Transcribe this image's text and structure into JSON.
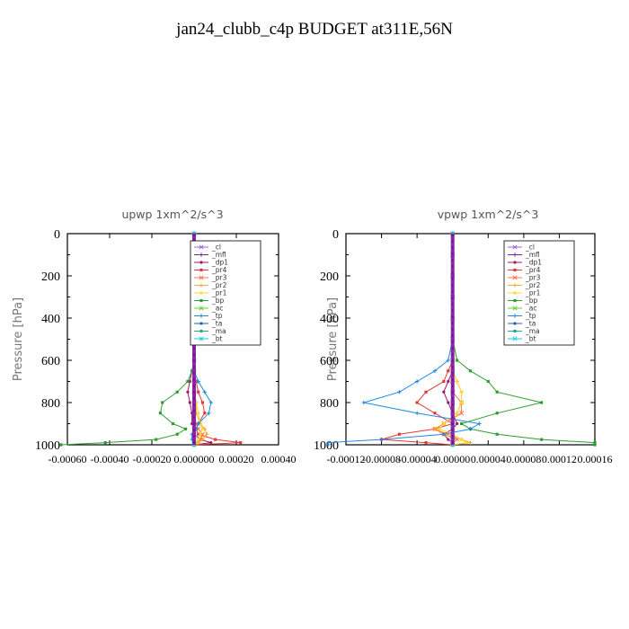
{
  "title": "jan24_clubb_c4p  BUDGET at311E,56N",
  "chart_data": [
    {
      "type": "line",
      "title": "upwp   1xm^2/s^3",
      "ylabel": "Pressure [hPa]",
      "ylim": [
        1000,
        0
      ],
      "xlim": [
        -0.0006,
        0.0004
      ],
      "xticks": [
        "-0.00060",
        "-0.00040",
        "-0.00020",
        "0.000000",
        "0.00020",
        "0.00040"
      ],
      "xtick_values": [
        -0.0006,
        -0.0004,
        -0.0002,
        0.0,
        0.0002,
        0.0004
      ],
      "yticks": [
        0,
        200,
        400,
        600,
        800,
        1000
      ],
      "y": [
        0,
        100,
        200,
        300,
        400,
        500,
        600,
        650,
        700,
        750,
        800,
        850,
        900,
        925,
        950,
        975,
        990,
        1000
      ],
      "legend": [
        "_cl",
        "_mfl",
        "_dp1",
        "_pr4",
        "_pr3",
        "_pr2",
        "_pr1",
        "_bp",
        "_ac",
        "_tp",
        "_ta",
        "_ma",
        "_bt"
      ],
      "series": [
        {
          "name": "_cl",
          "color": "#9966cc",
          "values": [
            0,
            0,
            0,
            0,
            0,
            0,
            0,
            0,
            0,
            0,
            0,
            0,
            0,
            0,
            0,
            0,
            0,
            0
          ]
        },
        {
          "name": "_mfl",
          "color": "#7b1fa2",
          "values": [
            0,
            0,
            0,
            0,
            0,
            0,
            0,
            0,
            0,
            0,
            0,
            0,
            0,
            0,
            0,
            0,
            0,
            0
          ]
        },
        {
          "name": "_dp1",
          "color": "#a0186a",
          "values": [
            0,
            0,
            0,
            0,
            0,
            0,
            0,
            -1e-05,
            -2e-05,
            -3e-05,
            -2e-05,
            -1e-05,
            -1e-05,
            0,
            0,
            3e-05,
            8e-05,
            0.0
          ]
        },
        {
          "name": "_pr4",
          "color": "#e53935",
          "values": [
            0,
            0,
            0,
            0,
            0,
            0,
            0,
            0,
            1e-05,
            2e-05,
            4e-05,
            5e-05,
            2e-05,
            1e-05,
            2e-05,
            0.0001,
            0.00022,
            0.0
          ]
        },
        {
          "name": "_pr3",
          "color": "#ff7043",
          "values": [
            0,
            0,
            0,
            0,
            0,
            0,
            0,
            0,
            0,
            0,
            0,
            0,
            1e-05,
            2e-05,
            4e-05,
            3e-05,
            1e-05,
            0
          ]
        },
        {
          "name": "_pr2",
          "color": "#ffa726",
          "values": [
            0,
            0,
            0,
            0,
            0,
            0,
            0,
            0,
            0,
            0,
            1e-05,
            1e-05,
            3e-05,
            5e-05,
            6e-05,
            4e-05,
            2e-05,
            0
          ]
        },
        {
          "name": "_pr1",
          "color": "#fdd835",
          "values": [
            0,
            0,
            0,
            0,
            0,
            0,
            0,
            0,
            0,
            0,
            1e-05,
            2e-05,
            3e-05,
            4e-05,
            3e-05,
            2e-05,
            1e-05,
            0
          ]
        },
        {
          "name": "_bp",
          "color": "#2e9e2e",
          "values": [
            0,
            0,
            0,
            0,
            0,
            0,
            0,
            -1e-05,
            -3e-05,
            -8e-05,
            -0.00015,
            -0.00016,
            -0.0001,
            -4e-05,
            -8e-05,
            -0.00018,
            -0.00042,
            -0.00063
          ]
        },
        {
          "name": "_ac",
          "color": "#66cc33",
          "values": [
            0,
            0,
            0,
            0,
            0,
            0,
            0,
            0,
            0,
            0,
            0,
            0,
            0,
            0,
            0,
            0,
            0,
            0
          ]
        },
        {
          "name": "_tp",
          "color": "#1e88e5",
          "values": [
            0,
            0,
            0,
            0,
            0,
            0,
            0,
            0,
            2e-05,
            5e-05,
            8e-05,
            7e-05,
            2e-05,
            1e-05,
            -1e-05,
            -1e-05,
            0,
            0
          ]
        },
        {
          "name": "_ta",
          "color": "#1f5fb0",
          "values": [
            0,
            0,
            0,
            0,
            0,
            0,
            0,
            0,
            0,
            0,
            0,
            0,
            0,
            0,
            0,
            0,
            0,
            0
          ]
        },
        {
          "name": "_ma",
          "color": "#26a69a",
          "values": [
            0,
            0,
            0,
            0,
            0,
            0,
            0,
            0,
            0,
            0,
            0,
            0,
            0,
            0,
            0,
            0,
            0,
            0
          ]
        },
        {
          "name": "_bt",
          "color": "#26c6da",
          "values": [
            0,
            0,
            0,
            0,
            0,
            0,
            0,
            0,
            0,
            0,
            0,
            0,
            0,
            0,
            0,
            0,
            0,
            0
          ]
        }
      ]
    },
    {
      "type": "line",
      "title": "vpwp   1xm^2/s^3",
      "ylabel": "Pressure [hPa]",
      "ylim": [
        1000,
        0
      ],
      "xlim": [
        -0.00012,
        0.00016
      ],
      "xticks": [
        "-0.00012",
        "-0.00008",
        "-0.00004",
        "0.00000",
        "0.00004",
        "0.00008",
        "0.00012",
        "0.00016"
      ],
      "xtick_values": [
        -0.00012,
        -8e-05,
        -4e-05,
        0.0,
        4e-05,
        8e-05,
        0.00012,
        0.00016
      ],
      "yticks": [
        0,
        200,
        400,
        600,
        800,
        1000
      ],
      "y": [
        0,
        100,
        200,
        300,
        400,
        500,
        600,
        650,
        700,
        750,
        800,
        850,
        900,
        925,
        950,
        975,
        990,
        1000
      ],
      "legend": [
        "_cl",
        "_mfl",
        "_dp1",
        "_pr4",
        "_pr3",
        "_pr2",
        "_pr1",
        "_bp",
        "_ac",
        "_tp",
        "_ta",
        "_ma",
        "_bt"
      ],
      "series": [
        {
          "name": "_cl",
          "color": "#9966cc",
          "values": [
            0,
            0,
            0,
            0,
            0,
            0,
            0,
            0,
            0,
            0,
            0,
            0,
            0,
            0,
            0,
            0,
            0,
            0
          ]
        },
        {
          "name": "_mfl",
          "color": "#7b1fa2",
          "values": [
            0,
            0,
            0,
            0,
            0,
            0,
            0,
            0,
            0,
            0,
            0,
            0,
            0,
            0,
            0,
            0,
            0,
            0
          ]
        },
        {
          "name": "_dp1",
          "color": "#a0186a",
          "values": [
            0,
            0,
            0,
            0,
            0,
            0,
            0,
            0,
            -5e-06,
            -1e-05,
            -5e-06,
            0,
            5e-06,
            0,
            -1e-05,
            -5e-06,
            0,
            0
          ]
        },
        {
          "name": "_pr4",
          "color": "#e53935",
          "values": [
            0,
            0,
            0,
            0,
            0,
            0,
            0,
            -5e-06,
            -1e-05,
            -3e-05,
            -4e-05,
            -2e-05,
            0,
            -2e-05,
            -6e-05,
            -8e-05,
            -3e-05,
            0
          ]
        },
        {
          "name": "_pr3",
          "color": "#ff7043",
          "values": [
            0,
            0,
            0,
            0,
            0,
            0,
            0,
            0,
            0,
            0,
            1e-05,
            1e-05,
            -1e-05,
            -2e-05,
            -1e-05,
            5e-06,
            0,
            0
          ]
        },
        {
          "name": "_pr2",
          "color": "#ffa726",
          "values": [
            0,
            0,
            0,
            0,
            0,
            0,
            0,
            0,
            5e-06,
            1e-05,
            1e-05,
            5e-06,
            -1e-05,
            -2e-05,
            -5e-06,
            1e-05,
            2e-05,
            0
          ]
        },
        {
          "name": "_pr1",
          "color": "#fdd835",
          "values": [
            0,
            0,
            0,
            0,
            0,
            0,
            0,
            0,
            5e-06,
            1e-05,
            1e-05,
            5e-06,
            -1e-05,
            -1.5e-05,
            0,
            1e-05,
            1.5e-05,
            0
          ]
        },
        {
          "name": "_bp",
          "color": "#2e9e2e",
          "values": [
            0,
            0,
            0,
            0,
            0,
            0,
            5e-06,
            2e-05,
            4e-05,
            5e-05,
            0.0001,
            5e-05,
            1e-05,
            2e-05,
            5e-05,
            0.0001,
            0.00016,
            0.00016
          ]
        },
        {
          "name": "_ac",
          "color": "#66cc33",
          "values": [
            0,
            0,
            0,
            0,
            0,
            0,
            0,
            0,
            0,
            0,
            0,
            0,
            0,
            0,
            0,
            0,
            0,
            0
          ]
        },
        {
          "name": "_tp",
          "color": "#1e88e5",
          "values": [
            0,
            0,
            0,
            0,
            0,
            0,
            -5e-06,
            -2e-05,
            -4e-05,
            -6e-05,
            -0.0001,
            -4e-05,
            3e-05,
            2e-05,
            -1e-05,
            -8e-05,
            -0.00014,
            -0.00014
          ]
        },
        {
          "name": "_ta",
          "color": "#1f5fb0",
          "values": [
            0,
            0,
            0,
            0,
            0,
            0,
            0,
            0,
            0,
            0,
            0,
            0,
            0,
            0,
            0,
            0,
            0,
            0
          ]
        },
        {
          "name": "_ma",
          "color": "#26a69a",
          "values": [
            0,
            0,
            0,
            0,
            0,
            0,
            0,
            0,
            0,
            0,
            0,
            0,
            0,
            0,
            0,
            0,
            0,
            0
          ]
        },
        {
          "name": "_bt",
          "color": "#26c6da",
          "values": [
            0,
            0,
            0,
            0,
            0,
            0,
            0,
            0,
            0,
            0,
            0,
            0,
            0,
            0,
            0,
            0,
            0,
            0
          ]
        }
      ]
    }
  ]
}
